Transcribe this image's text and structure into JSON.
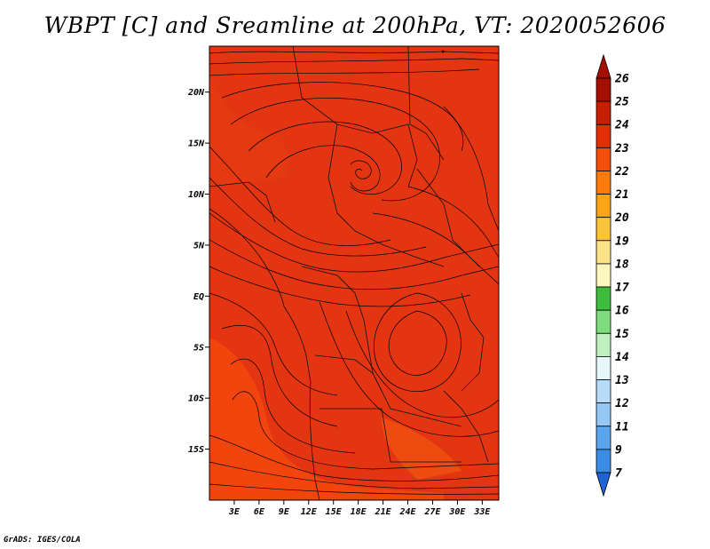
{
  "title": "WBPT [C] and Sreamline at 200hPa, VT: 2020052606",
  "footer": "GrADS: IGES/COLA",
  "map": {
    "lat_range": [
      -20,
      24.5
    ],
    "lon_range": [
      0,
      35
    ],
    "fill_color": "#e33512",
    "alt_fill_color": "#f54a0c",
    "lat_ticks": [
      {
        "value": 20,
        "label": "20N"
      },
      {
        "value": 15,
        "label": "15N"
      },
      {
        "value": 10,
        "label": "10N"
      },
      {
        "value": 5,
        "label": "5N"
      },
      {
        "value": 0,
        "label": "EQ"
      },
      {
        "value": -5,
        "label": "5S"
      },
      {
        "value": -10,
        "label": "10S"
      },
      {
        "value": -15,
        "label": "15S"
      }
    ],
    "lon_ticks": [
      {
        "value": 3,
        "label": "3E"
      },
      {
        "value": 6,
        "label": "6E"
      },
      {
        "value": 9,
        "label": "9E"
      },
      {
        "value": 12,
        "label": "12E"
      },
      {
        "value": 15,
        "label": "15E"
      },
      {
        "value": 18,
        "label": "18E"
      },
      {
        "value": 21,
        "label": "21E"
      },
      {
        "value": 24,
        "label": "24E"
      },
      {
        "value": 27,
        "label": "27E"
      },
      {
        "value": 30,
        "label": "30E"
      },
      {
        "value": 33,
        "label": "33E"
      }
    ]
  },
  "colorbar": {
    "levels": [
      {
        "label": "26",
        "color": "#a50f00"
      },
      {
        "label": "25",
        "color": "#c81e00"
      },
      {
        "label": "24",
        "color": "#e12e08"
      },
      {
        "label": "23",
        "color": "#f54e08"
      },
      {
        "label": "22",
        "color": "#fa7a0a"
      },
      {
        "label": "21",
        "color": "#fca414"
      },
      {
        "label": "20",
        "color": "#fcc43c"
      },
      {
        "label": "19",
        "color": "#fde28a"
      },
      {
        "label": "18",
        "color": "#fdf6bd"
      },
      {
        "label": "17",
        "color": "#3cbe3c"
      },
      {
        "label": "16",
        "color": "#7edc7e"
      },
      {
        "label": "15",
        "color": "#bff0bf"
      },
      {
        "label": "14",
        "color": "#e6f8fa"
      },
      {
        "label": "13",
        "color": "#b7dcfa"
      },
      {
        "label": "12",
        "color": "#96c8f5"
      },
      {
        "label": "11",
        "color": "#5aa5eb"
      },
      {
        "label": "9",
        "color": "#3c8ce6"
      },
      {
        "label": "7",
        "color": "#1e64d7"
      }
    ],
    "top_color": "#a50f00",
    "bottom_color": "#1e64d7"
  }
}
